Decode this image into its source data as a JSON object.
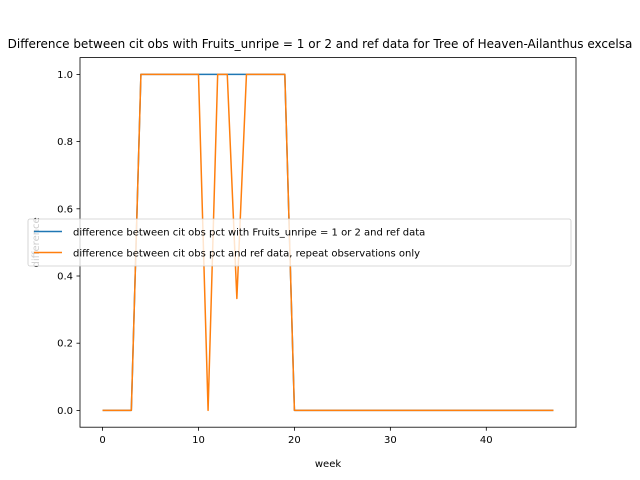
{
  "chart_data": {
    "type": "line",
    "title": "Difference between cit obs with Fruits_unripe = 1 or 2 and ref data for Tree of Heaven-Ailanthus excelsa",
    "xlabel": "week",
    "ylabel": "difference",
    "xlim": [
      -2.35,
      49.35
    ],
    "ylim": [
      -0.05,
      1.05
    ],
    "xticks": [
      0,
      10,
      20,
      30,
      40
    ],
    "yticks": [
      0.0,
      0.2,
      0.4,
      0.6,
      0.8,
      1.0
    ],
    "ytick_labels": [
      "0.0",
      "0.2",
      "0.4",
      "0.6",
      "0.8",
      "1.0"
    ],
    "grid": false,
    "legend_position": "center-right",
    "x": [
      0,
      1,
      2,
      3,
      4,
      5,
      6,
      7,
      8,
      9,
      10,
      11,
      12,
      13,
      14,
      15,
      16,
      17,
      18,
      19,
      20,
      21,
      22,
      23,
      24,
      25,
      26,
      27,
      28,
      29,
      30,
      31,
      32,
      33,
      34,
      35,
      36,
      37,
      38,
      39,
      40,
      41,
      42,
      43,
      44,
      45,
      46,
      47
    ],
    "series": [
      {
        "name": "difference between cit obs pct with Fruits_unripe = 1 or 2 and ref data",
        "color": "#1f77b4",
        "values": [
          0,
          0,
          0,
          0,
          1,
          1,
          1,
          1,
          1,
          1,
          1,
          1,
          1,
          1,
          1,
          1,
          1,
          1,
          1,
          1,
          0,
          0,
          0,
          0,
          0,
          0,
          0,
          0,
          0,
          0,
          0,
          0,
          0,
          0,
          0,
          0,
          0,
          0,
          0,
          0,
          0,
          0,
          0,
          0,
          0,
          0,
          0,
          0
        ]
      },
      {
        "name": "difference between cit obs pct and ref data, repeat observations only",
        "color": "#ff7f0e",
        "values": [
          0,
          0,
          0,
          0,
          1,
          1,
          1,
          1,
          1,
          1,
          1,
          0,
          1,
          1,
          0.333,
          1,
          1,
          1,
          1,
          1,
          0,
          0,
          0,
          0,
          0,
          0,
          0,
          0,
          0,
          0,
          0,
          0,
          0,
          0,
          0,
          0,
          0,
          0,
          0,
          0,
          0,
          0,
          0,
          0,
          0,
          0,
          0,
          0
        ]
      }
    ]
  }
}
